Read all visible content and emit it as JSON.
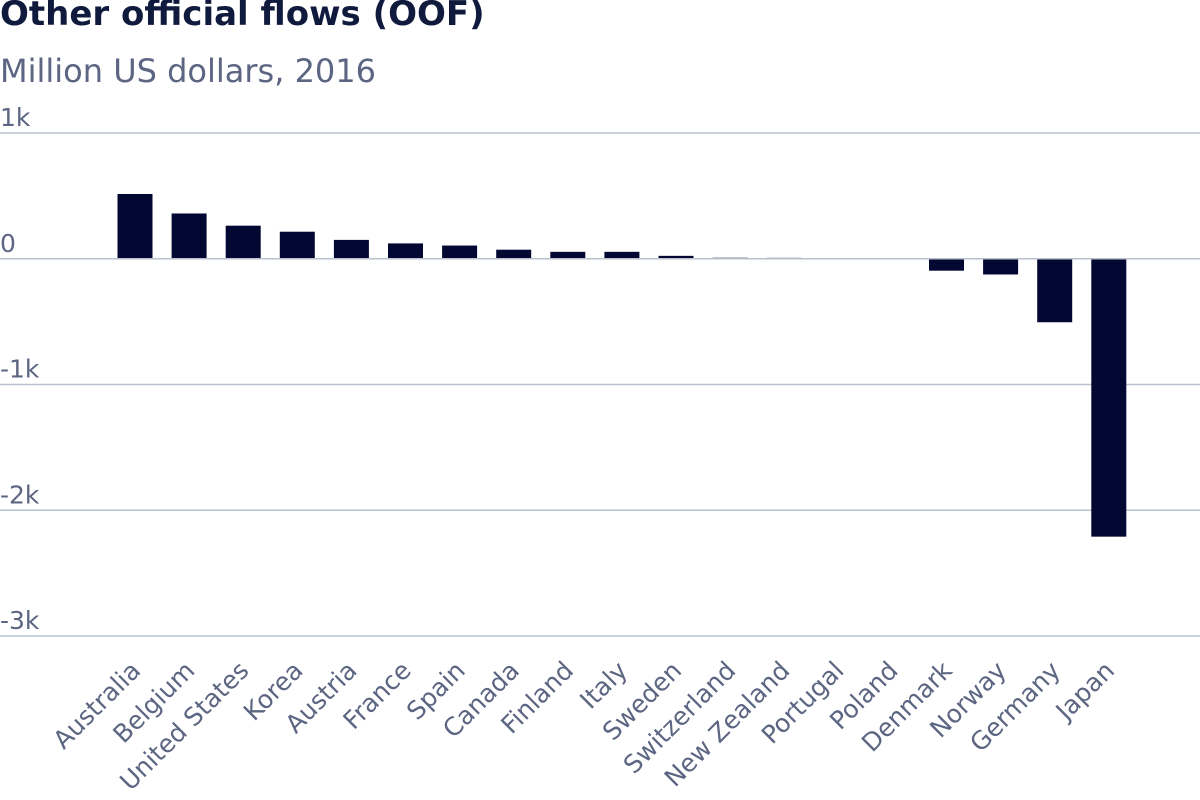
{
  "chart_data": {
    "type": "bar",
    "title": "Other official flows (OOF)",
    "subtitle": "Million US dollars, 2016",
    "xlabel": "",
    "ylabel": "",
    "ylim": [
      -3000,
      1000
    ],
    "yticks": [
      1000,
      0,
      -1000,
      -2000,
      -3000
    ],
    "ytick_labels": [
      "1k",
      "0",
      "-1k",
      "-2k",
      "-3k"
    ],
    "grid": true,
    "legend": "none",
    "categories": [
      "Australia",
      "Belgium",
      "United States",
      "Korea",
      "Austria",
      "France",
      "Spain",
      "Canada",
      "Finland",
      "Italy",
      "Sweden",
      "Switzerland",
      "New Zealand",
      "Portugal",
      "Poland",
      "Denmark",
      "Norway",
      "Germany",
      "Japan"
    ],
    "values": [
      515,
      360,
      263,
      215,
      150,
      122,
      105,
      72,
      55,
      55,
      23,
      8,
      7,
      2,
      0,
      -95,
      -125,
      -505,
      -2210
    ],
    "bar_color": "#030833"
  }
}
